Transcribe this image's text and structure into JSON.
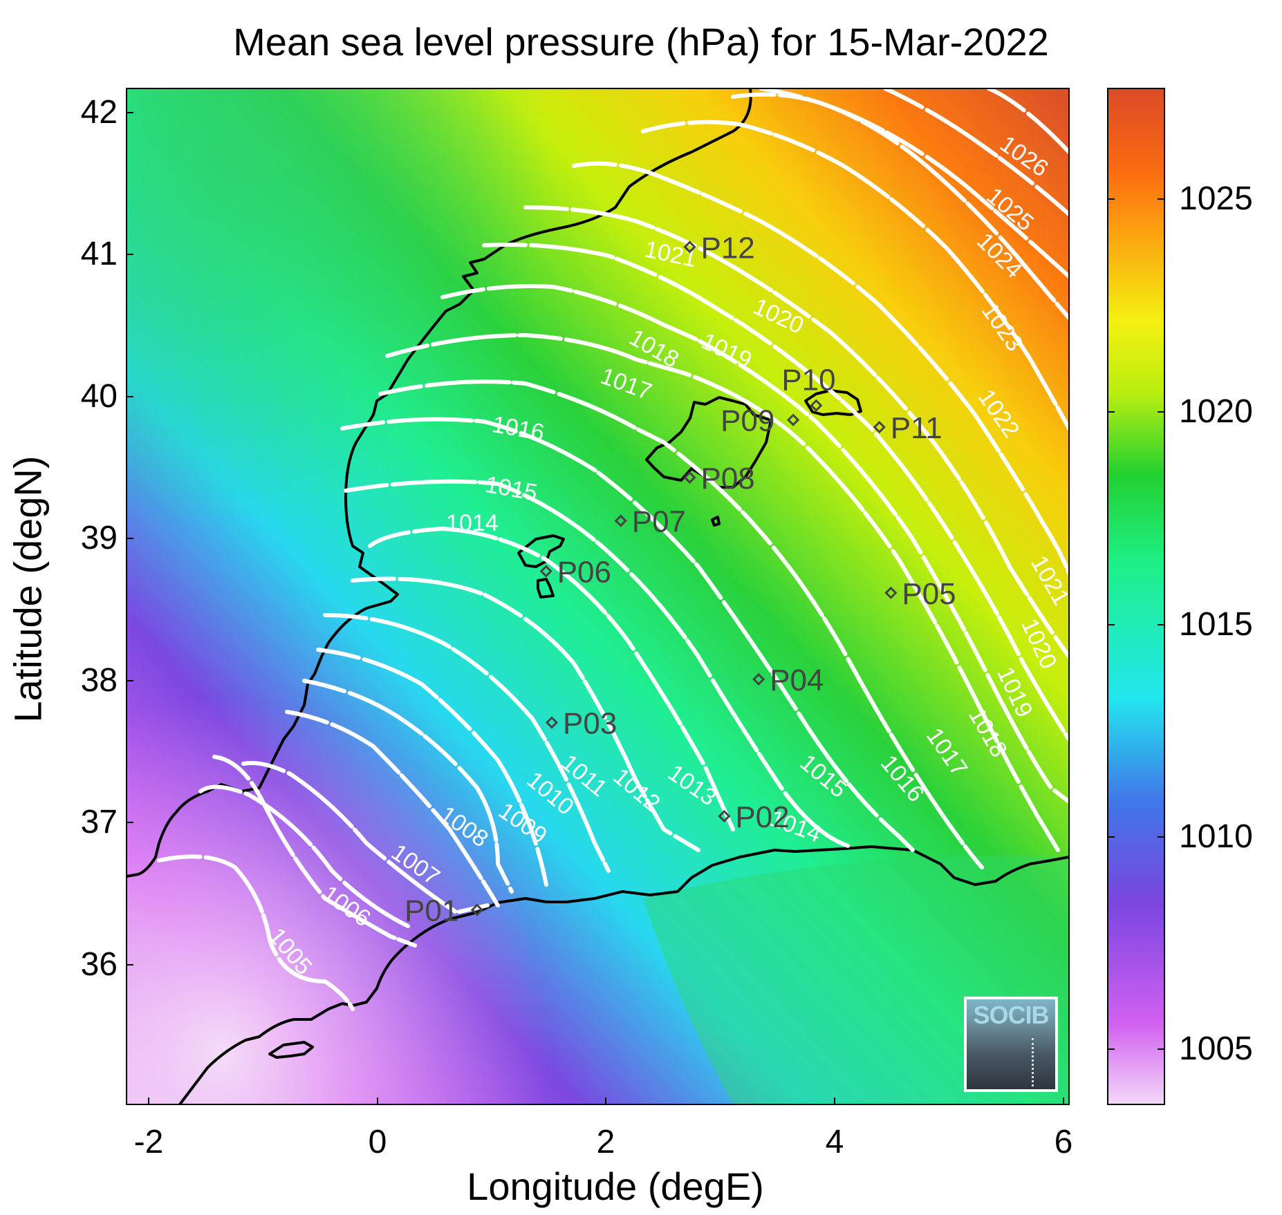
{
  "title": "Mean sea level pressure (hPa) for 15-Mar-2022",
  "xlabel": "Longitude (degE)",
  "ylabel": "Latitude (degN)",
  "x_ticks": [
    "-2",
    "0",
    "2",
    "4",
    "6"
  ],
  "y_ticks": [
    "42",
    "41",
    "40",
    "39",
    "38",
    "37",
    "36"
  ],
  "colorbar_ticks": [
    "1025",
    "1020",
    "1015",
    "1010",
    "1005"
  ],
  "logo_text": "SOCIB",
  "colors": {
    "land_outline": "#000000",
    "isobar": "#ffffff",
    "station": "#444444"
  },
  "chart_data": {
    "type": "heatmap",
    "title": "Mean sea level pressure (hPa) for 15-Mar-2022",
    "xlabel": "Longitude (degE)",
    "ylabel": "Latitude (degN)",
    "xlim": [
      -2.2,
      6
    ],
    "ylim": [
      35.15,
      42.2
    ],
    "colorbar_range": [
      1003.7,
      1027.7
    ],
    "colorbar_ticks": [
      1005,
      1010,
      1015,
      1020,
      1025
    ],
    "contour_labels": [
      1005,
      1006,
      1007,
      1008,
      1009,
      1010,
      1011,
      1012,
      1013,
      1014,
      1015,
      1016,
      1017,
      1018,
      1019,
      1020,
      1021,
      1022,
      1023,
      1024,
      1025,
      1026
    ],
    "stations": [
      {
        "name": "P01",
        "lon": 0.85,
        "lat": 36.5
      },
      {
        "name": "P02",
        "lon": 3.0,
        "lat": 37.15
      },
      {
        "name": "P03",
        "lon": 1.5,
        "lat": 37.8
      },
      {
        "name": "P04",
        "lon": 3.3,
        "lat": 38.1
      },
      {
        "name": "P05",
        "lon": 4.45,
        "lat": 38.7
      },
      {
        "name": "P06",
        "lon": 1.45,
        "lat": 38.85
      },
      {
        "name": "P07",
        "lon": 2.1,
        "lat": 39.2
      },
      {
        "name": "P08",
        "lon": 2.7,
        "lat": 39.5
      },
      {
        "name": "P09",
        "lon": 3.6,
        "lat": 39.9
      },
      {
        "name": "P10",
        "lon": 3.8,
        "lat": 40.0
      },
      {
        "name": "P11",
        "lon": 4.35,
        "lat": 39.85
      },
      {
        "name": "P12",
        "lon": 2.7,
        "lat": 41.1
      }
    ]
  }
}
